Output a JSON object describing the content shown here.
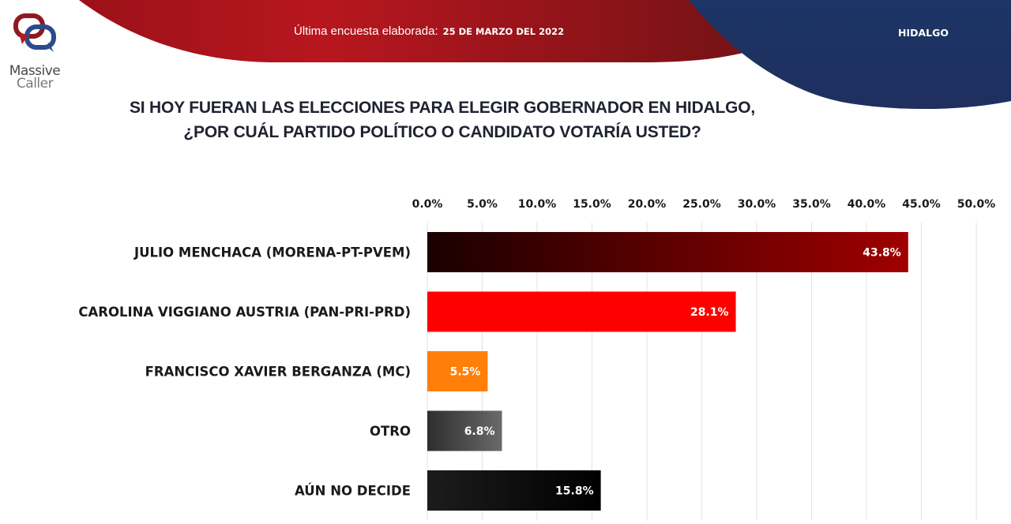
{
  "header": {
    "brand_line1": "Massive",
    "brand_line2": "Caller",
    "survey_label": "Última encuesta elaborada:",
    "survey_date": "25 DE MARZO DEL 2022",
    "state": "HIDALGO",
    "colors": {
      "red_banner": "#b5151e",
      "blue_banner": "#1e3466"
    }
  },
  "question": {
    "line1": "SI HOY FUERAN LAS ELECCIONES PARA ELEGIR GOBERNADOR EN HIDALGO,",
    "line2": "¿POR CUÁL PARTIDO POLÍTICO O CANDIDATO VOTARÍA USTED?"
  },
  "chart_data": {
    "type": "bar",
    "orientation": "horizontal",
    "title": "SI HOY FUERAN LAS ELECCIONES PARA ELEGIR GOBERNADOR EN HIDALGO, ¿POR CUÁL PARTIDO POLÍTICO O CANDIDATO VOTARÍA USTED?",
    "xlabel": "",
    "ylabel": "",
    "xlim": [
      0,
      50
    ],
    "x_ticks": [
      "0.0%",
      "5.0%",
      "10.0%",
      "15.0%",
      "20.0%",
      "25.0%",
      "30.0%",
      "35.0%",
      "40.0%",
      "45.0%",
      "50.0%"
    ],
    "x_axis_position": "top",
    "grid": true,
    "categories": [
      "JULIO MENCHACA (MORENA-PT-PVEM)",
      "CAROLINA VIGGIANO AUSTRIA (PAN-PRI-PRD)",
      "FRANCISCO XAVIER BERGANZA (MC)",
      "OTRO",
      "AÚN NO DECIDE"
    ],
    "values": [
      43.8,
      28.1,
      5.5,
      6.8,
      15.8
    ],
    "value_labels": [
      "43.8%",
      "28.1%",
      "5.5%",
      "6.8%",
      "15.8%"
    ],
    "bar_colors": [
      {
        "from": "#1a0000",
        "to": "#a00000"
      },
      {
        "from": "#ff0000",
        "to": "#ff0000"
      },
      {
        "from": "#ff7f0a",
        "to": "#ff7f0a"
      },
      {
        "from": "#2e2e2e",
        "to": "#6a6a6a"
      },
      {
        "from": "#1c1c1c",
        "to": "#000000"
      }
    ]
  }
}
